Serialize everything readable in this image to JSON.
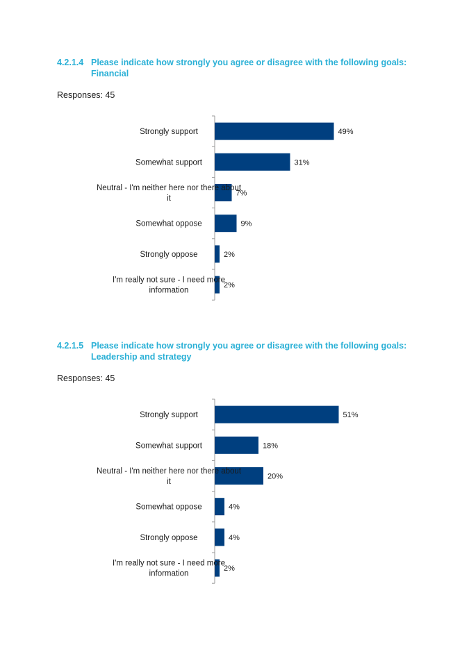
{
  "sections": [
    {
      "number": "4.2.1.4",
      "title_line1": "Please indicate how strongly you agree or disagree with the following goals:",
      "title_line2": "Financial",
      "responses": "Responses: 45"
    },
    {
      "number": "4.2.1.5",
      "title_line1": "Please indicate how strongly you agree or disagree with the following goals:",
      "title_line2": "Leadership and strategy",
      "responses": "Responses: 45"
    }
  ],
  "colors": {
    "heading": "#2ab0d6",
    "bar": "#003f7f",
    "axis": "#999999"
  },
  "chart_data": [
    {
      "type": "bar",
      "orientation": "horizontal",
      "categories": [
        [
          "Strongly support"
        ],
        [
          "Somewhat support"
        ],
        [
          "Neutral - I'm neither here nor there about",
          "it"
        ],
        [
          "Somewhat oppose"
        ],
        [
          "Strongly oppose"
        ],
        [
          "I'm really not sure - I need more",
          "information"
        ]
      ],
      "values": [
        49,
        31,
        7,
        9,
        2,
        2
      ],
      "value_labels": [
        "49%",
        "31%",
        "7%",
        "9%",
        "2%",
        "2%"
      ],
      "xlim": [
        0,
        100
      ],
      "grid": false,
      "legend": false
    },
    {
      "type": "bar",
      "orientation": "horizontal",
      "categories": [
        [
          "Strongly support"
        ],
        [
          "Somewhat support"
        ],
        [
          "Neutral - I'm neither here nor there about",
          "it"
        ],
        [
          "Somewhat oppose"
        ],
        [
          "Strongly oppose"
        ],
        [
          "I'm really not sure - I need more",
          "information"
        ]
      ],
      "values": [
        51,
        18,
        20,
        4,
        4,
        2
      ],
      "value_labels": [
        "51%",
        "18%",
        "20%",
        "4%",
        "4%",
        "2%"
      ],
      "xlim": [
        0,
        100
      ],
      "grid": false,
      "legend": false
    }
  ]
}
